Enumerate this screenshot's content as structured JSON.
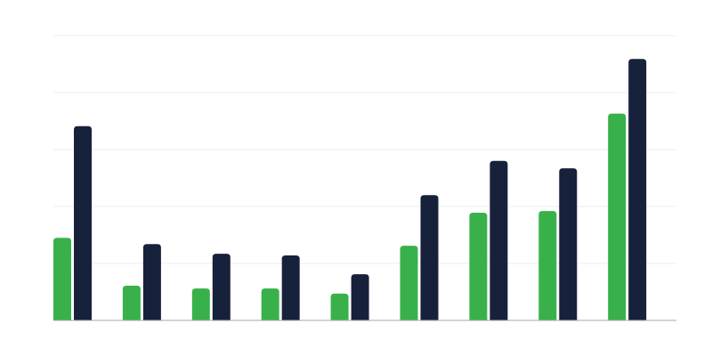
{
  "chart_data": {
    "type": "bar",
    "title": "",
    "xlabel": "",
    "ylabel": "",
    "categories": [
      "",
      "",
      "",
      "",
      "",
      "",
      "",
      "",
      ""
    ],
    "ylim": [
      0,
      5
    ],
    "grid": true,
    "legend": "none",
    "colors": {
      "series1": "#39b14a",
      "series2": "#17213b",
      "grid": "#eeeeee",
      "baseline": "#aaaaaa"
    },
    "series": [
      {
        "values": [
          1.45,
          0.61,
          0.56,
          0.56,
          0.47,
          1.31,
          1.89,
          1.92,
          3.63
        ]
      },
      {
        "values": [
          3.41,
          1.34,
          1.17,
          1.14,
          0.81,
          2.2,
          2.8,
          2.67,
          4.59
        ]
      }
    ]
  }
}
